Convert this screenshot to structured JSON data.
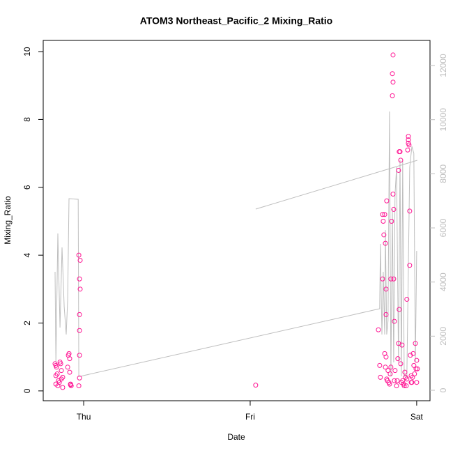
{
  "chart_data": {
    "type": "scatter",
    "title": "ATOM3 Northeast_Pacific_2 Mixing_Ratio",
    "xlabel": "Date",
    "ylabel": "Mixing_Ratio",
    "xlim": [
      -0.243,
      2.08
    ],
    "xticks": [
      {
        "value": 0,
        "label": "Thu"
      },
      {
        "value": 1,
        "label": "Fri"
      },
      {
        "value": 2,
        "label": "Sat"
      }
    ],
    "ylim": [
      -0.29,
      10.33
    ],
    "yticks": [
      0,
      2,
      4,
      6,
      8,
      10
    ],
    "y2lim": [
      -386,
      12928
    ],
    "y2ticks": [
      0,
      2000,
      4000,
      6000,
      8000,
      10000,
      12000
    ],
    "color": "#ff1493",
    "x": [
      -0.172,
      -0.167,
      -0.163,
      -0.167,
      -0.159,
      -0.167,
      -0.155,
      -0.151,
      -0.146,
      -0.142,
      -0.138,
      -0.134,
      -0.134,
      -0.126,
      -0.126,
      -0.096,
      -0.092,
      -0.088,
      -0.084,
      -0.084,
      -0.079,
      -0.075,
      -0.079,
      -0.029,
      -0.021,
      -0.025,
      -0.021,
      -0.025,
      -0.025,
      -0.025,
      -0.025,
      -0.029,
      1.033,
      1.77,
      1.778,
      1.782,
      1.795,
      1.795,
      1.799,
      1.803,
      1.808,
      1.808,
      1.812,
      1.812,
      1.816,
      1.816,
      1.816,
      1.82,
      1.82,
      1.824,
      1.828,
      1.833,
      1.837,
      1.841,
      1.845,
      1.845,
      1.849,
      1.854,
      1.854,
      1.858,
      1.858,
      1.858,
      1.862,
      1.862,
      1.866,
      1.866,
      1.87,
      1.879,
      1.883,
      1.887,
      1.891,
      1.891,
      1.895,
      1.895,
      1.9,
      1.904,
      1.904,
      1.908,
      1.912,
      1.916,
      1.921,
      1.925,
      1.929,
      1.933,
      1.937,
      1.941,
      1.941,
      1.946,
      1.95,
      1.95,
      1.95,
      1.954,
      1.958,
      1.958,
      1.962,
      1.967,
      1.967,
      1.971,
      1.975,
      1.979,
      1.983,
      1.987,
      1.992,
      1.996,
      2.0,
      2.0,
      2.004
    ],
    "values": [
      0.8,
      0.75,
      0.7,
      0.45,
      0.5,
      0.2,
      0.15,
      0.3,
      0.25,
      0.85,
      0.8,
      0.6,
      0.35,
      0.1,
      0.4,
      0.7,
      1.05,
      1.1,
      0.95,
      0.55,
      0.2,
      0.15,
      0.18,
      4.0,
      3.85,
      3.3,
      3.0,
      2.25,
      1.78,
      1.05,
      0.38,
      0.15,
      0.17,
      1.8,
      0.75,
      0.4,
      3.3,
      5.2,
      5.0,
      4.6,
      5.2,
      1.1,
      4.35,
      0.7,
      3.0,
      2.25,
      1.0,
      5.6,
      0.35,
      0.3,
      0.6,
      0.25,
      0.2,
      0.5,
      0.7,
      3.3,
      5.0,
      8.7,
      9.35,
      9.9,
      9.1,
      5.8,
      5.35,
      3.3,
      2.05,
      0.3,
      0.6,
      0.15,
      0.3,
      0.95,
      1.4,
      6.5,
      2.4,
      7.05,
      7.05,
      6.8,
      0.8,
      0.25,
      1.35,
      0.3,
      0.2,
      0.15,
      0.55,
      0.4,
      0.15,
      2.7,
      0.35,
      7.1,
      7.3,
      7.4,
      7.5,
      7.25,
      5.3,
      3.7,
      1.05,
      0.45,
      0.25,
      0.25,
      0.4,
      1.1,
      0.75,
      0.5,
      1.4,
      0.65,
      0.25,
      0.9,
      0.65
    ],
    "line": {
      "axis": "y2",
      "color": "#bebebe",
      "x": [
        -0.172,
        -0.167,
        -0.155,
        -0.142,
        -0.13,
        -0.117,
        -0.105,
        -0.096,
        -0.088,
        -0.033,
        -0.029,
        -0.021,
        1.778,
        1.782,
        1.791,
        1.799,
        1.808,
        1.812,
        1.82,
        1.828,
        1.837,
        1.845,
        1.854,
        1.862,
        1.87,
        1.879,
        1.891,
        1.9,
        1.908,
        1.916,
        1.925,
        1.941,
        1.958,
        1.971,
        1.983,
        1.992,
        2.0,
        null,
        1.033,
        2.004
      ],
      "values": [
        4378,
        1030,
        5794,
        2318,
        5279,
        3090,
        2060,
        3348,
        7082,
        7056,
        515,
        515,
        3013,
        5408,
        2060,
        4378,
        2060,
        5922,
        2060,
        2575,
        10301,
        515,
        6696,
        1030,
        7210,
        8241,
        1030,
        8499,
        515,
        8499,
        515,
        515,
        8241,
        9014,
        8756,
        1030,
        5150,
        null,
        6696,
        8499
      ]
    }
  }
}
